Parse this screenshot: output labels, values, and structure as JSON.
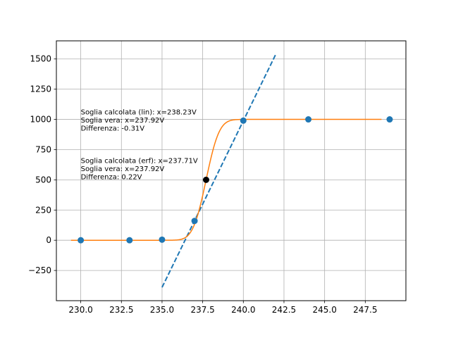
{
  "chart_data": {
    "type": "scatter",
    "title": "",
    "xlabel": "",
    "ylabel": "",
    "xlim": [
      228.5,
      250.0
    ],
    "ylim": [
      -500,
      1650
    ],
    "grid": true,
    "x_ticks": [
      230.0,
      232.5,
      235.0,
      237.5,
      240.0,
      242.5,
      245.0,
      247.5
    ],
    "x_tick_labels": [
      "230.0",
      "232.5",
      "235.0",
      "237.5",
      "240.0",
      "242.5",
      "245.0",
      "247.5"
    ],
    "y_ticks": [
      -250,
      0,
      250,
      500,
      750,
      1000,
      1250,
      1500
    ],
    "y_tick_labels": [
      "−250",
      "0",
      "250",
      "500",
      "750",
      "1000",
      "1250",
      "1500"
    ],
    "series": [
      {
        "kind": "scatter",
        "color": "#1f77b4",
        "x": [
          230.0,
          233.0,
          235.0,
          237.0,
          240.0,
          244.0,
          249.0
        ],
        "y": [
          0,
          0,
          5,
          160,
          990,
          1000,
          1000
        ]
      },
      {
        "kind": "line",
        "style": "dashed",
        "color": "#1f77b4",
        "x": [
          235.0,
          242.0
        ],
        "y": [
          -390,
          1540
        ]
      },
      {
        "kind": "line",
        "style": "solid",
        "color": "#ff7f0e",
        "curve": "erf",
        "x_range": [
          229.4,
          248.5
        ],
        "center": 237.71,
        "width": 0.9,
        "amplitude": 1000
      },
      {
        "kind": "point",
        "color": "#000000",
        "x": 237.71,
        "y": 500
      }
    ],
    "annotations": [
      {
        "lines": [
          "Soglia calcolata (lin): x=238.23V",
          "Soglia vera: x=237.92V",
          "Differenza: -0.31V"
        ],
        "x": 230.0,
        "y": 1040
      },
      {
        "lines": [
          "Soglia calcolata (erf): x=237.71V",
          "Soglia vera: x=237.92V",
          "Differenza: 0.22V"
        ],
        "x": 230.0,
        "y": 640
      }
    ]
  }
}
